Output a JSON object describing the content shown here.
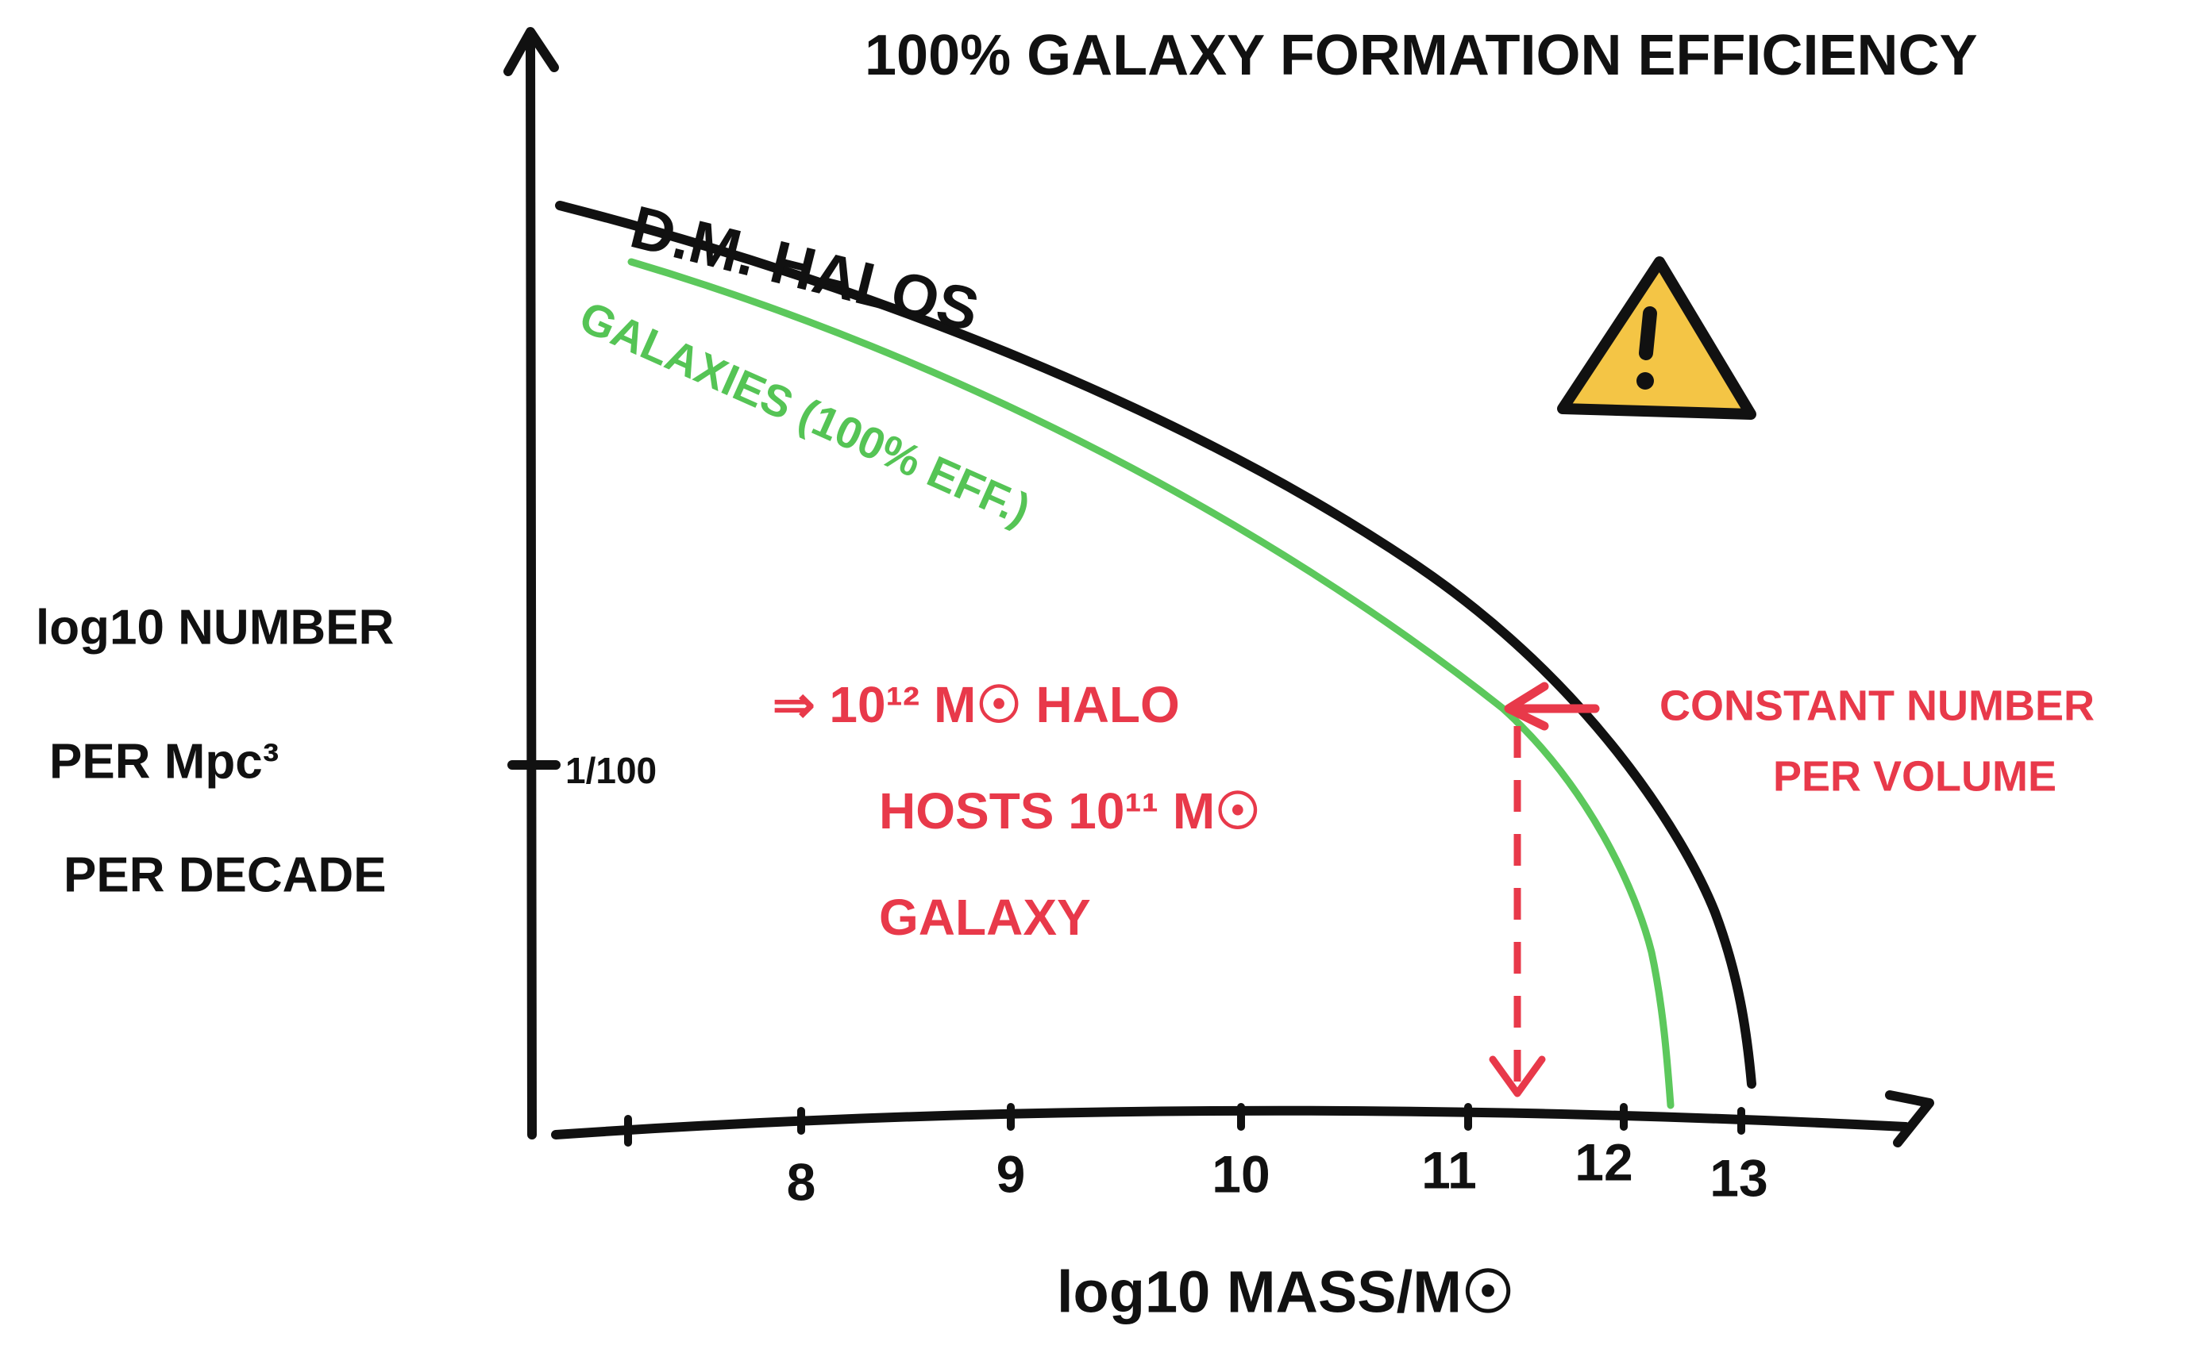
{
  "header": {
    "title": "100% GALAXY FORMATION EFFICIENCY"
  },
  "curves": {
    "halos": "D.M. HALOS",
    "galaxies": "GALAXIES (100% EFF.)"
  },
  "y_axis": {
    "label_lines": [
      "log10 NUMBER",
      "PER Mpc³",
      "PER DECADE"
    ],
    "tick": "1/100"
  },
  "x_axis": {
    "label": "log10 MASS/M☉",
    "ticks": [
      "8",
      "9",
      "10",
      "11",
      "12",
      "13"
    ]
  },
  "annotations": {
    "matching": [
      "⇒ 10¹² M☉ HALO",
      "HOSTS 10¹¹ M☉",
      "GALAXY"
    ],
    "constant": [
      "CONSTANT NUMBER",
      "PER VOLUME"
    ]
  }
}
